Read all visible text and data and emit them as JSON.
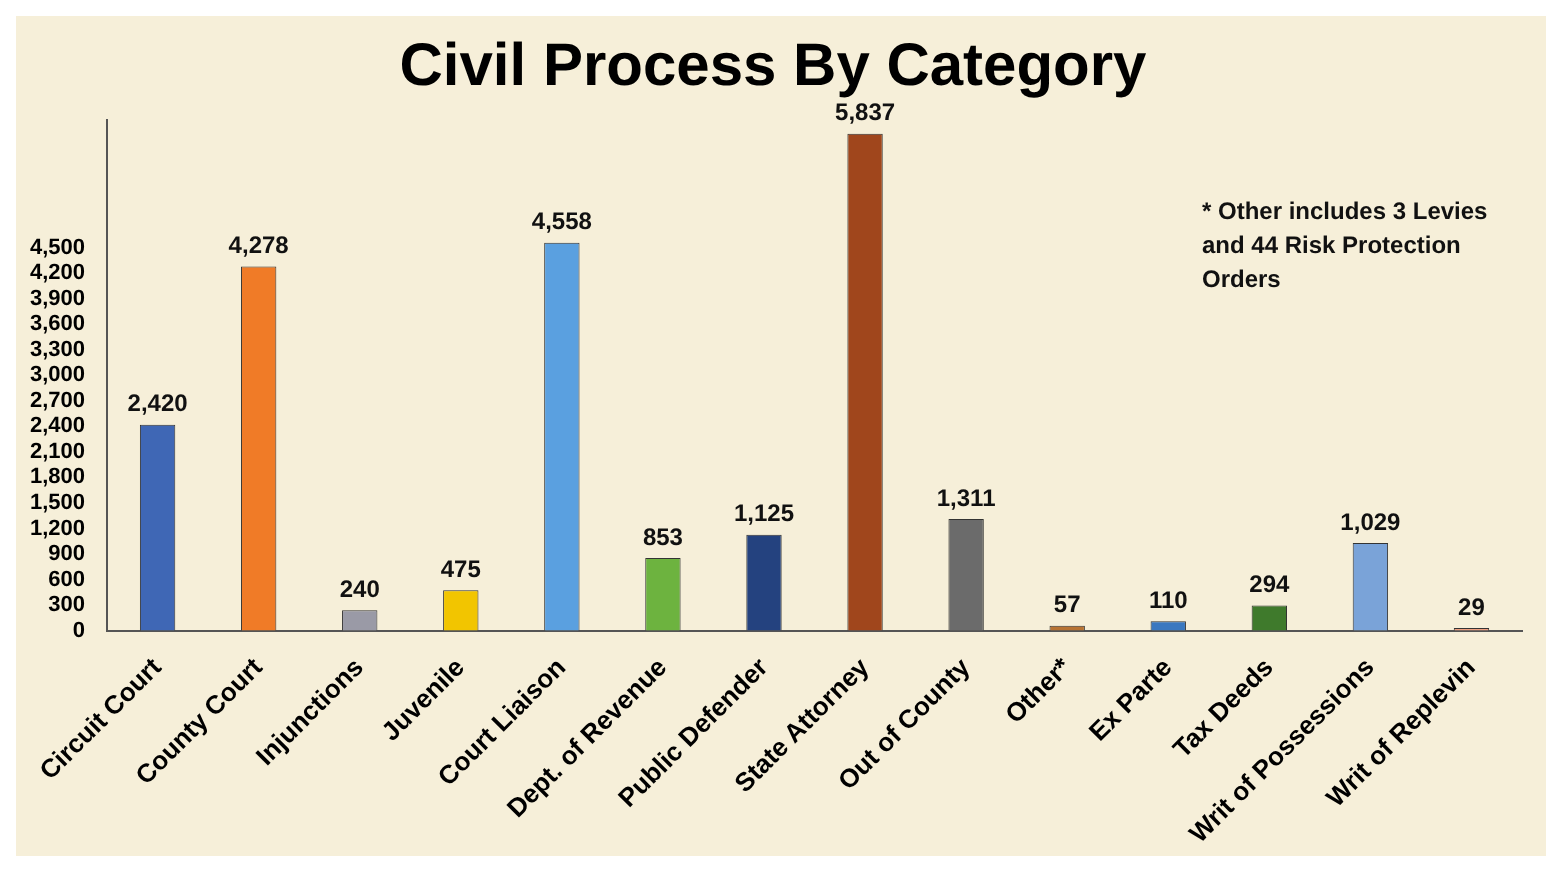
{
  "chart_data": {
    "type": "bar",
    "title": "Civil Process By Category",
    "categories": [
      "Circuit Court",
      "County Court",
      "Injunctions",
      "Juvenile",
      "Court Liaison",
      "Dept. of Revenue",
      "Public Defender",
      "State Attorney",
      "Out of County",
      "Other*",
      "Ex Parte",
      "Tax Deeds",
      "Writ of Possessions",
      "Writ of Replevin"
    ],
    "values": [
      2420,
      4278,
      240,
      475,
      4558,
      853,
      1125,
      5837,
      1311,
      57,
      110,
      294,
      1029,
      29
    ],
    "value_labels": [
      "2,420",
      "4,278",
      "240",
      "475",
      "4,558",
      "853",
      "1,125",
      "5,837",
      "1,311",
      "57",
      "110",
      "294",
      "1,029",
      "29"
    ],
    "colors": [
      "#3f67b5",
      "#f07b27",
      "#9a9aa6",
      "#f2c500",
      "#5aa0e0",
      "#6db33f",
      "#24427f",
      "#a0461c",
      "#6b6b6b",
      "#b87333",
      "#3a78c0",
      "#3f7a2c",
      "#7aa3d8",
      "#f0a080"
    ],
    "ylim": [
      0,
      6000
    ],
    "yticks": [
      0,
      300,
      600,
      900,
      {
        "value": 1200,
        "label": "1,200"
      },
      {
        "value": 1500,
        "label": "1,500"
      },
      {
        "value": 1800,
        "label": "1,800"
      },
      {
        "value": 2100,
        "label": "2,100"
      },
      {
        "value": 2400,
        "label": "2,400"
      },
      {
        "value": 2700,
        "label": "2,700"
      },
      {
        "value": 3000,
        "label": "3,000"
      },
      {
        "value": 3300,
        "label": "3,300"
      },
      {
        "value": 3600,
        "label": "3,600"
      },
      {
        "value": 3900,
        "label": "3,900"
      },
      {
        "value": 4200,
        "label": "4,200"
      },
      {
        "value": 4500,
        "label": "4,500"
      }
    ],
    "grid": false,
    "legend": false,
    "annotations": [
      "* Other includes 3 Levies and 44 Risk Protection Orders"
    ]
  }
}
